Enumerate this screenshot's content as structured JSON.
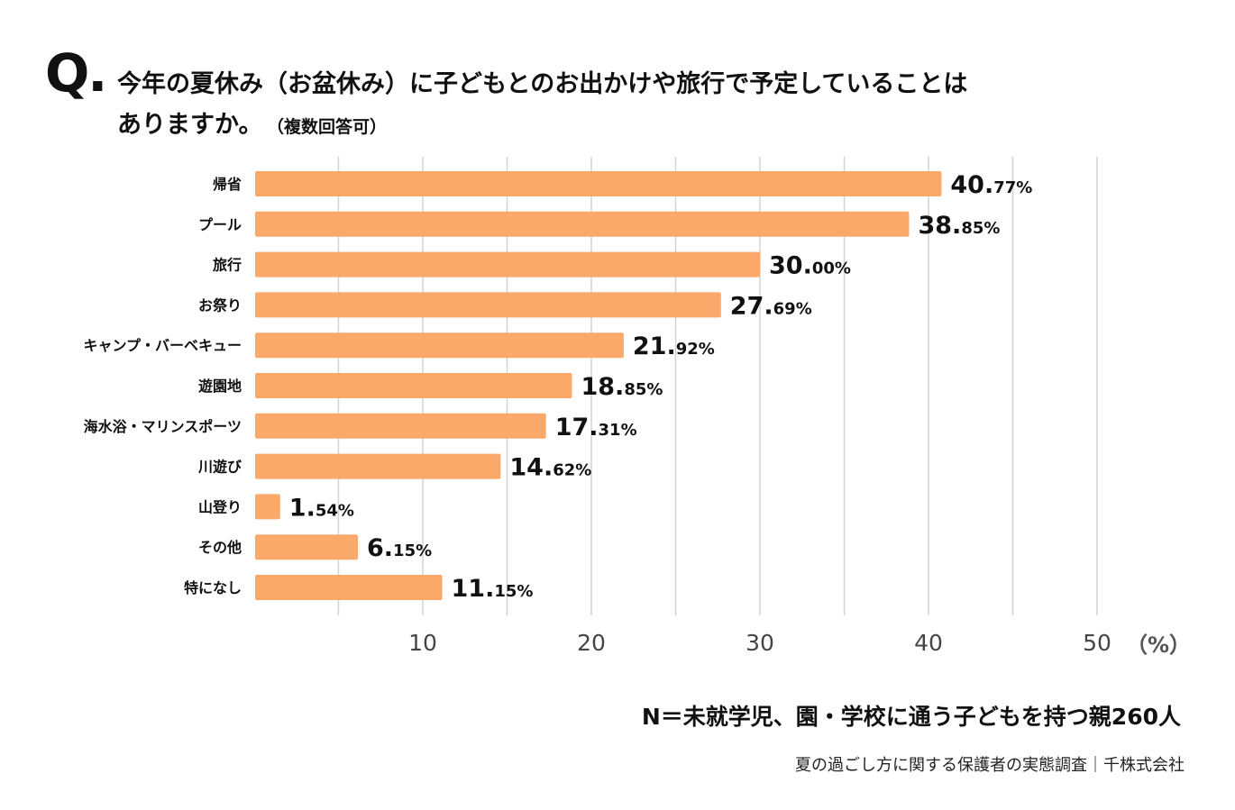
{
  "question": {
    "mark": "Q.",
    "line1": "今年の夏休み（お盆休み）に子どもとのお出かけや旅行で予定していることは",
    "line2": "ありますか。",
    "sub": "（複数回答可）"
  },
  "chart_data": {
    "type": "bar",
    "orientation": "horizontal",
    "title": "今年の夏休み（お盆休み）に子どもとのお出かけや旅行で予定していることはありますか。（複数回答可）",
    "categories": [
      "帰省",
      "プール",
      "旅行",
      "お祭り",
      "キャンプ・バーベキュー",
      "遊園地",
      "海水浴・マリンスポーツ",
      "川遊び",
      "山登り",
      "その他",
      "特になし"
    ],
    "values": [
      40.77,
      38.85,
      30.0,
      27.69,
      21.92,
      18.85,
      17.31,
      14.62,
      1.54,
      6.15,
      11.15
    ],
    "value_labels": [
      {
        "int": "40.",
        "dec": "77%"
      },
      {
        "int": "38.",
        "dec": "85%"
      },
      {
        "int": "30.",
        "dec": "00%"
      },
      {
        "int": "27.",
        "dec": "69%"
      },
      {
        "int": "21.",
        "dec": "92%"
      },
      {
        "int": "18.",
        "dec": "85%"
      },
      {
        "int": "17.",
        "dec": "31%"
      },
      {
        "int": "14.",
        "dec": "62%"
      },
      {
        "int": "1.",
        "dec": "54%"
      },
      {
        "int": "6.",
        "dec": "15%"
      },
      {
        "int": "11.",
        "dec": "15%"
      }
    ],
    "xlim": [
      0,
      50
    ],
    "xticks": [
      10,
      20,
      30,
      40,
      50
    ],
    "grid_step": 5,
    "xlabel": "（%）",
    "bar_color": "#FBA86B",
    "grid_color": "#D3D3D3"
  },
  "footer": {
    "n_note": "N＝未就学児、園・学校に通う子どもを持つ親260人",
    "source": "夏の過ごし方に関する保護者の実態調査｜千株式会社"
  }
}
